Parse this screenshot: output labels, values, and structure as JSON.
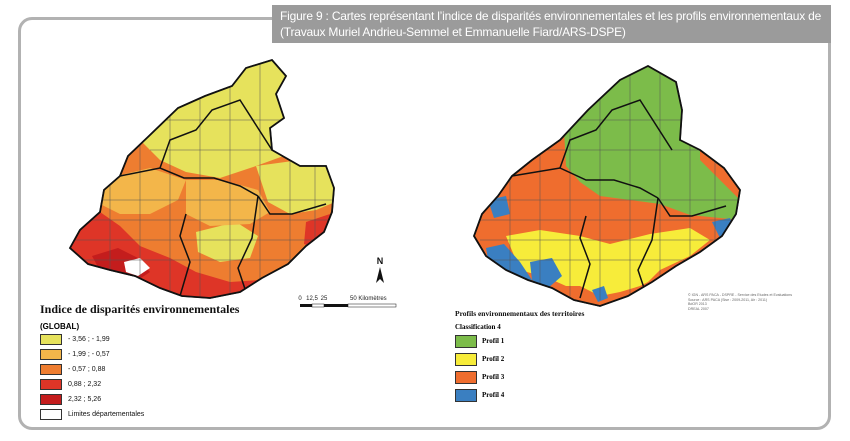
{
  "figure": {
    "title_line1": "Figure 9 : Cartes représentant l’indice de disparités environnementales et les profils environnementaux de territoires",
    "title_line2": "(Travaux Muriel Andrieu-Semmel et Emmanuelle Fiard/ARS-DSPE)"
  },
  "colors": {
    "frame": "#b2b2b2",
    "title_bg": "#9b9b9b",
    "class1": "#e6e25c",
    "class2": "#f3b64a",
    "class3": "#ee7d30",
    "class4": "#de3527",
    "class5": "#c41d1d",
    "profil1": "#7cbc4a",
    "profil2": "#f7ec3a",
    "profil3": "#ef6d2e",
    "profil4": "#3a7fc1"
  },
  "legend_left": {
    "title": "Indice de disparités environnementales",
    "subtitle": "(GLOBAL)",
    "items": [
      {
        "label": "- 3,56 ; - 1,99",
        "color": "#e6e25c"
      },
      {
        "label": "- 1,99 ; - 0,57",
        "color": "#f3b64a"
      },
      {
        "label": "- 0,57 ; 0,88",
        "color": "#ee7d30"
      },
      {
        "label": "0,88 ; 2,32",
        "color": "#de3527"
      },
      {
        "label": "2,32 ; 5,26",
        "color": "#c41d1d"
      },
      {
        "label": "Limites départementales",
        "color": "#ffffff"
      }
    ]
  },
  "legend_right": {
    "title": "Profils environnementaux des territoires",
    "subtitle": "Classification 4",
    "items": [
      {
        "label": "Profil 1",
        "color": "#7cbc4a"
      },
      {
        "label": "Profil 2",
        "color": "#f7ec3a"
      },
      {
        "label": "Profil 3",
        "color": "#ef6d2e"
      },
      {
        "label": "Profil 4",
        "color": "#3a7fc1"
      }
    ]
  },
  "scale": {
    "tick0": "0",
    "tick1": "12,5",
    "tick2": "25",
    "tick3": "50 Kilomètres"
  },
  "north_label": "N",
  "source_lines": [
    "© IGN - ARS PACA - DSPRE - Service des Etudes et Evaluations",
    "Source : ARS PACA (Sise : 2009-2011, Air : 2011)",
    "BdOR 2013",
    "DREAL 2007"
  ]
}
